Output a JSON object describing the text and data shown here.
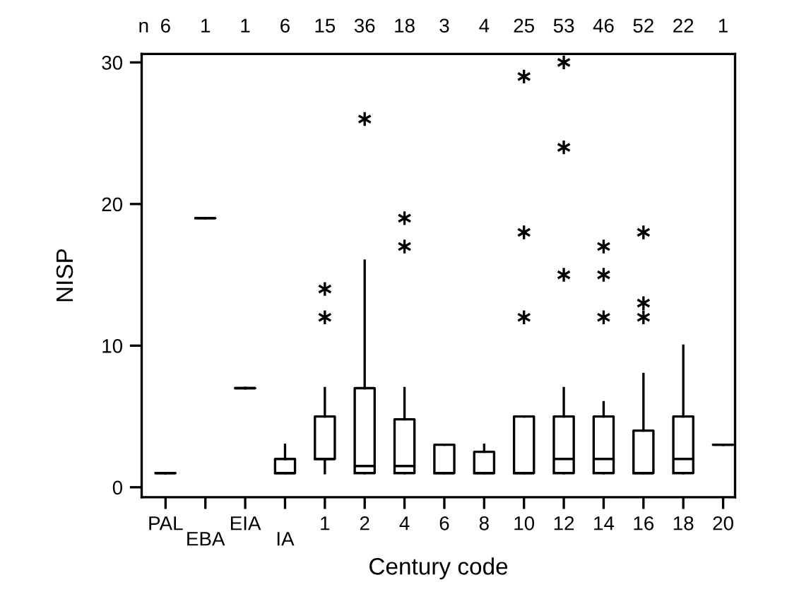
{
  "chart_data": {
    "type": "box",
    "xlabel": "Century code",
    "ylabel": "NISP",
    "categories": [
      "PAL",
      "EBA",
      "EIA",
      "IA",
      "1",
      "2",
      "4",
      "6",
      "8",
      "10",
      "12",
      "14",
      "16",
      "18",
      "20"
    ],
    "boxes": [
      {
        "low": 1,
        "q1": 1,
        "median": 1,
        "q3": 1,
        "high": 1
      },
      {
        "low": 19,
        "q1": 19,
        "median": 19,
        "q3": 19,
        "high": 19
      },
      {
        "low": 7,
        "q1": 7,
        "median": 7,
        "q3": 7,
        "high": 7
      },
      {
        "low": 1,
        "q1": 1,
        "median": 1,
        "q3": 2,
        "high": 3
      },
      {
        "low": 1,
        "q1": 2,
        "median": 2,
        "q3": 5,
        "high": 7,
        "outliers": [
          12,
          14
        ]
      },
      {
        "low": 1,
        "q1": 1,
        "median": 1.5,
        "q3": 7,
        "high": 16,
        "outliers": [
          26
        ]
      },
      {
        "low": 1,
        "q1": 1,
        "median": 1.5,
        "q3": 4.8,
        "high": 7,
        "outliers": [
          17,
          19
        ]
      },
      {
        "low": 1,
        "q1": 1,
        "median": 1,
        "q3": 3,
        "high": 3
      },
      {
        "low": 1,
        "q1": 1,
        "median": 1,
        "q3": 2.5,
        "high": 3
      },
      {
        "low": 1,
        "q1": 1,
        "median": 1,
        "q3": 5,
        "high": 5,
        "outliers": [
          12,
          18,
          29
        ]
      },
      {
        "low": 1,
        "q1": 1,
        "median": 2,
        "q3": 5,
        "high": 7,
        "outliers": [
          15,
          24,
          30
        ]
      },
      {
        "low": 1,
        "q1": 1,
        "median": 2,
        "q3": 5,
        "high": 6,
        "outliers": [
          12,
          15,
          17
        ]
      },
      {
        "low": 1,
        "q1": 1,
        "median": 1,
        "q3": 4,
        "high": 8,
        "outliers": [
          12,
          13,
          18
        ]
      },
      {
        "low": 1,
        "q1": 1,
        "median": 2,
        "q3": 5,
        "high": 10
      },
      {
        "low": 3,
        "q1": 3,
        "median": 3,
        "q3": 3,
        "high": 3
      }
    ],
    "annotations": [
      "n 6 1 1 6 15 36 18 3 4 25 53 46 52 22 1"
    ],
    "ylim": [
      -0.7,
      30.6
    ],
    "yticks": [
      0,
      10,
      20,
      30
    ],
    "marker": "star",
    "grid": false,
    "legend": false
  }
}
